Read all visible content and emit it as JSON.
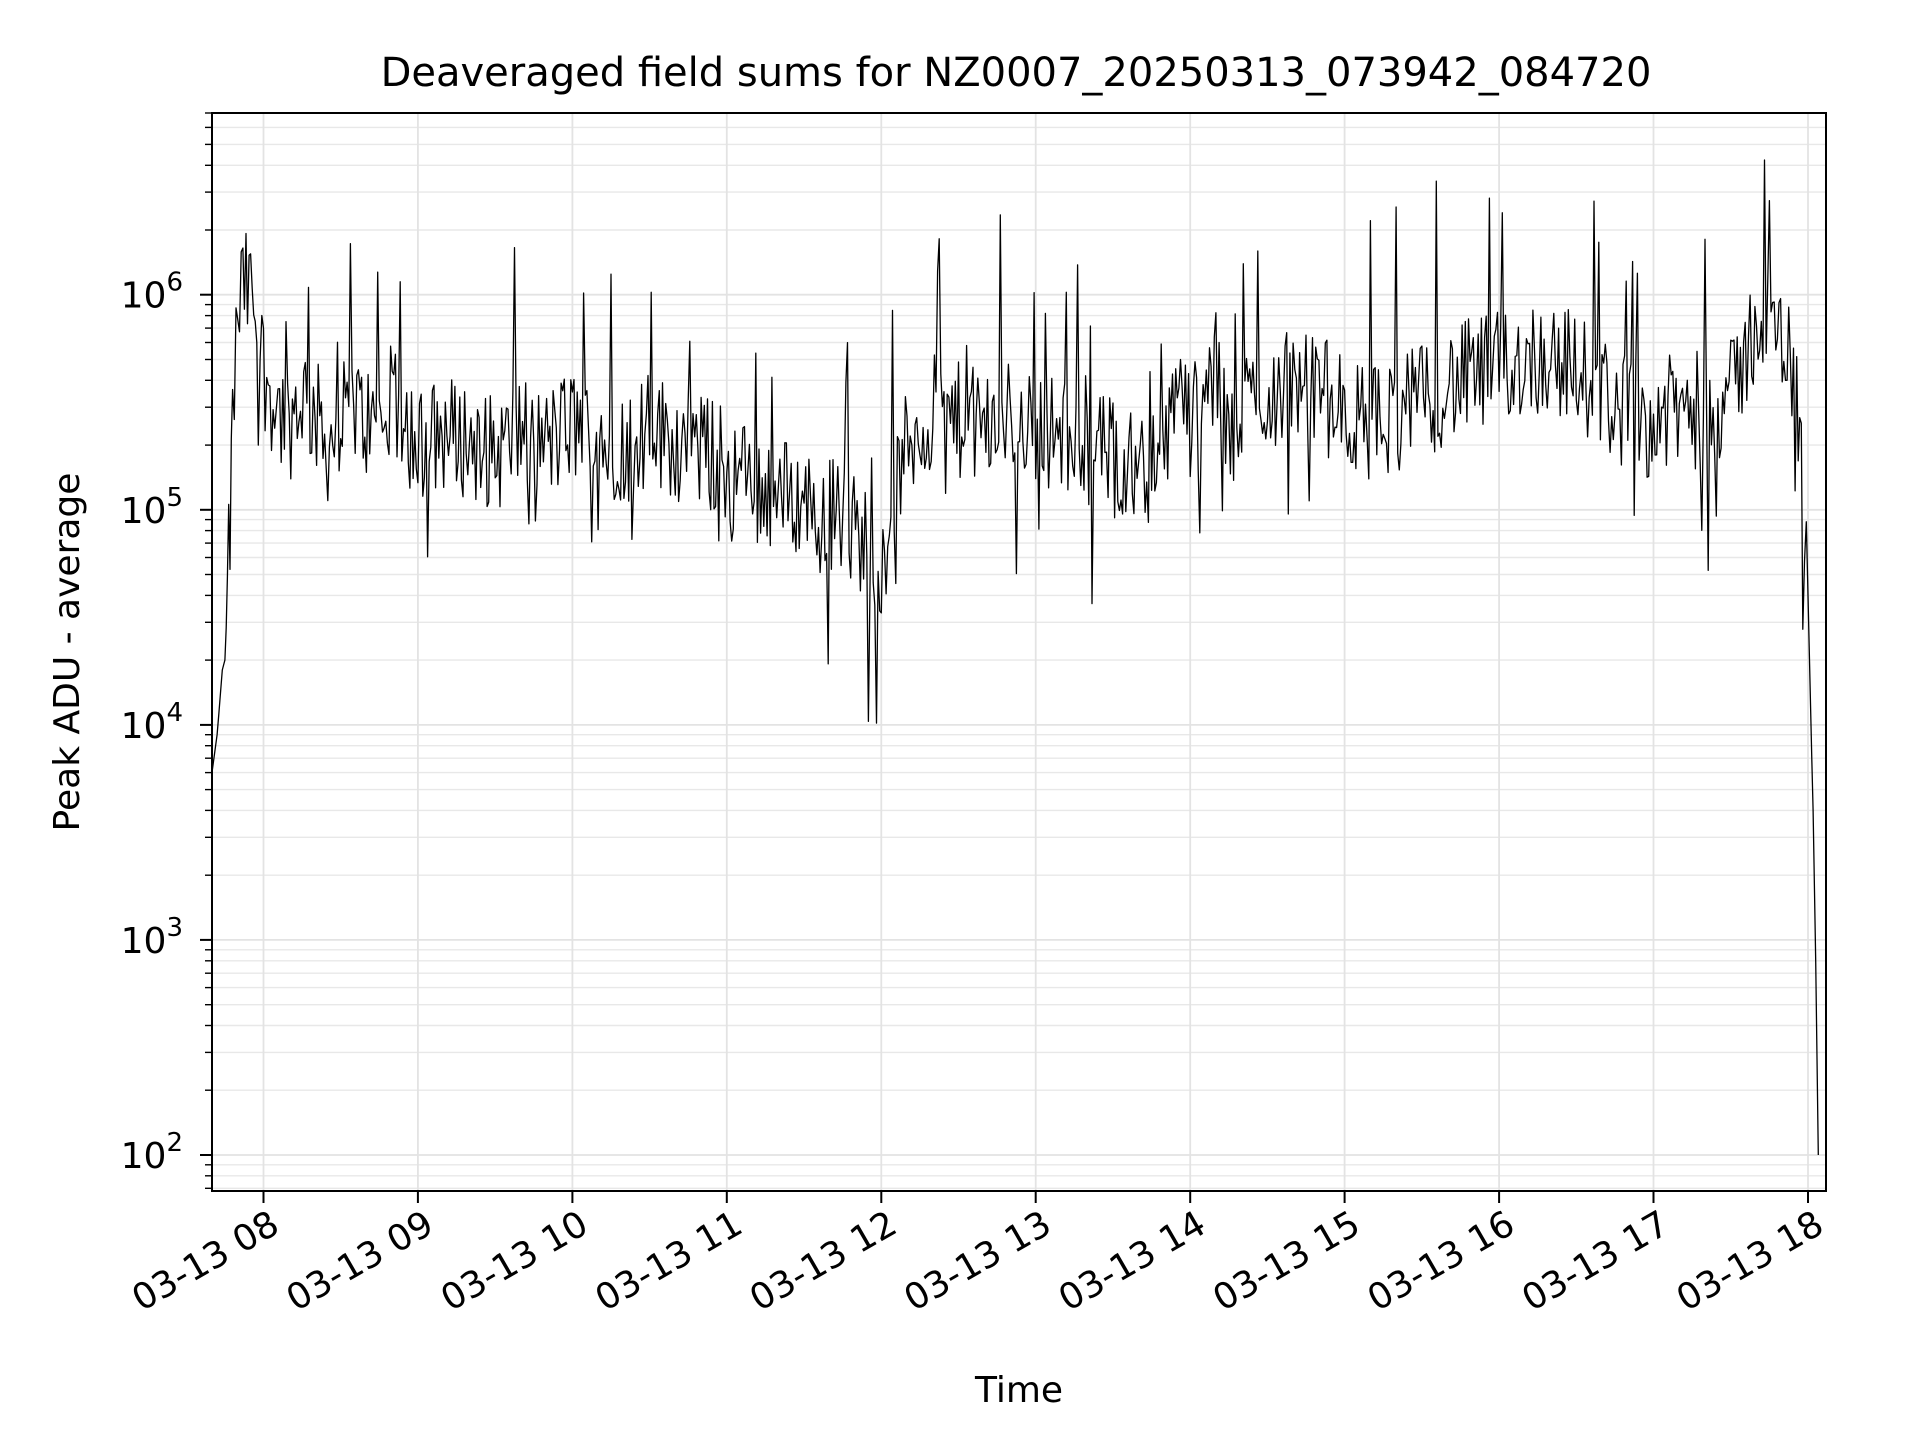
{
  "chart_data": {
    "type": "line",
    "title": "Deaveraged field sums for NZ0007_20250313_073942_084720",
    "xlabel": "Time",
    "ylabel": "Peak ADU - average",
    "y_scale": "log",
    "ylim": [
      68,
      7000000
    ],
    "xlim": [
      "2025-03-13 07:40",
      "2025-03-13 18:07"
    ],
    "grid": "major and minor, light gray",
    "legend": "none",
    "x_ticks": [
      "03-13 08",
      "03-13 09",
      "03-13 10",
      "03-13 11",
      "03-13 12",
      "03-13 13",
      "03-13 14",
      "03-13 15",
      "03-13 16",
      "03-13 17",
      "03-13 18"
    ],
    "x_tick_times": [
      "2025-03-13 08:00",
      "2025-03-13 09:00",
      "2025-03-13 10:00",
      "2025-03-13 11:00",
      "2025-03-13 12:00",
      "2025-03-13 13:00",
      "2025-03-13 14:00",
      "2025-03-13 15:00",
      "2025-03-13 16:00",
      "2025-03-13 17:00",
      "2025-03-13 18:00"
    ],
    "y_ticks": [
      {
        "value": 100,
        "base": "10",
        "exp": "2"
      },
      {
        "value": 1000,
        "base": "10",
        "exp": "3"
      },
      {
        "value": 10000,
        "base": "10",
        "exp": "4"
      },
      {
        "value": 100000,
        "base": "10",
        "exp": "5"
      },
      {
        "value": 1000000,
        "base": "10",
        "exp": "6"
      }
    ],
    "line_color": "#000000",
    "series": [
      {
        "x": [
          "2025-03-13 07:40",
          "2025-03-13 07:42",
          "2025-03-13 07:44",
          "2025-03-13 07:45",
          "2025-03-13 07:46",
          "2025-03-13 07:47",
          "2025-03-13 07:48",
          "2025-03-13 07:50",
          "2025-03-13 07:52",
          "2025-03-13 07:55",
          "2025-03-13 07:58",
          "2025-03-13 08:00",
          "2025-03-13 08:05",
          "2025-03-13 08:10",
          "2025-03-13 08:15",
          "2025-03-13 08:20",
          "2025-03-13 08:25",
          "2025-03-13 08:30",
          "2025-03-13 08:35",
          "2025-03-13 08:40",
          "2025-03-13 08:45",
          "2025-03-13 08:50",
          "2025-03-13 08:55",
          "2025-03-13 09:00",
          "2025-03-13 09:10",
          "2025-03-13 09:20",
          "2025-03-13 09:30",
          "2025-03-13 09:40",
          "2025-03-13 09:50",
          "2025-03-13 10:00",
          "2025-03-13 10:10",
          "2025-03-13 10:20",
          "2025-03-13 10:30",
          "2025-03-13 10:40",
          "2025-03-13 10:50",
          "2025-03-13 11:00",
          "2025-03-13 11:10",
          "2025-03-13 11:20",
          "2025-03-13 11:30",
          "2025-03-13 11:40",
          "2025-03-13 11:50",
          "2025-03-13 12:00",
          "2025-03-13 12:10",
          "2025-03-13 12:20",
          "2025-03-13 12:30",
          "2025-03-13 12:40",
          "2025-03-13 12:50",
          "2025-03-13 13:00",
          "2025-03-13 13:10",
          "2025-03-13 13:20",
          "2025-03-13 13:30",
          "2025-03-13 13:40",
          "2025-03-13 13:50",
          "2025-03-13 13:55",
          "2025-03-13 14:00",
          "2025-03-13 14:05",
          "2025-03-13 14:10",
          "2025-03-13 14:15",
          "2025-03-13 14:20",
          "2025-03-13 14:30",
          "2025-03-13 14:40",
          "2025-03-13 14:50",
          "2025-03-13 15:00",
          "2025-03-13 15:10",
          "2025-03-13 15:20",
          "2025-03-13 15:30",
          "2025-03-13 15:40",
          "2025-03-13 15:50",
          "2025-03-13 16:00",
          "2025-03-13 16:10",
          "2025-03-13 16:20",
          "2025-03-13 16:30",
          "2025-03-13 16:40",
          "2025-03-13 16:50",
          "2025-03-13 17:00",
          "2025-03-13 17:10",
          "2025-03-13 17:20",
          "2025-03-13 17:30",
          "2025-03-13 17:40",
          "2025-03-13 17:45",
          "2025-03-13 17:50",
          "2025-03-13 17:55",
          "2025-03-13 17:58",
          "2025-03-13 18:00",
          "2025-03-13 18:01",
          "2025-03-13 18:02",
          "2025-03-13 18:03",
          "2025-03-13 18:04"
        ],
        "y": [
          6000,
          9000,
          18000,
          20000,
          40000,
          80000,
          250000,
          800000,
          1100000,
          1000000,
          800000,
          450000,
          300000,
          250000,
          350000,
          280000,
          200000,
          250000,
          300000,
          260000,
          220000,
          300000,
          250000,
          200000,
          230000,
          210000,
          180000,
          230000,
          200000,
          250000,
          220000,
          200000,
          240000,
          210000,
          190000,
          160000,
          130000,
          120000,
          110000,
          100000,
          80000,
          60000,
          200000,
          280000,
          260000,
          240000,
          270000,
          250000,
          220000,
          200000,
          180000,
          170000,
          150000,
          500000,
          250000,
          300000,
          450000,
          200000,
          300000,
          350000,
          380000,
          360000,
          280000,
          250000,
          280000,
          320000,
          380000,
          420000,
          450000,
          500000,
          520000,
          450000,
          350000,
          280000,
          260000,
          290000,
          300000,
          330000,
          750000,
          700000,
          650000,
          400000,
          150000,
          40000,
          12000,
          4000,
          800,
          100
        ]
      }
    ]
  }
}
